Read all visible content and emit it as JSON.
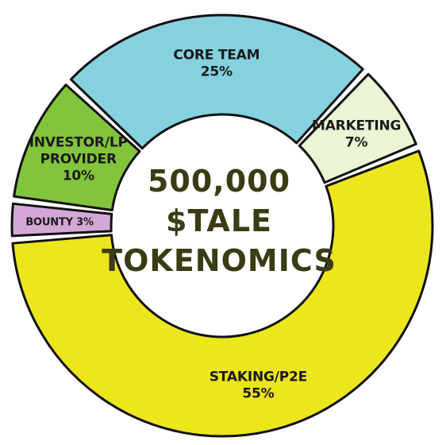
{
  "chart_data": {
    "type": "pie",
    "style": "donut",
    "center_text": [
      "500,000",
      "$TALE",
      "TOKENOMICS"
    ],
    "slices": [
      {
        "label": "CORE TEAM",
        "value": 25,
        "value_label": "25%",
        "color": "#86d1e0"
      },
      {
        "label": "MARKETING",
        "value": 7,
        "value_label": "7%",
        "color": "#eaf5d3"
      },
      {
        "label": "STAKING/P2E",
        "value": 55,
        "value_label": "55%",
        "color": "#ece61c"
      },
      {
        "label": "BOUNTY",
        "value": 3,
        "value_label": "3%",
        "color": "#d4a8d6"
      },
      {
        "label": "INVESTOR/LP PROVIDER",
        "label_lines": [
          "INVESTOR/LP",
          "PROVIDER"
        ],
        "value": 10,
        "value_label": "10%",
        "color": "#83c43d"
      }
    ]
  }
}
